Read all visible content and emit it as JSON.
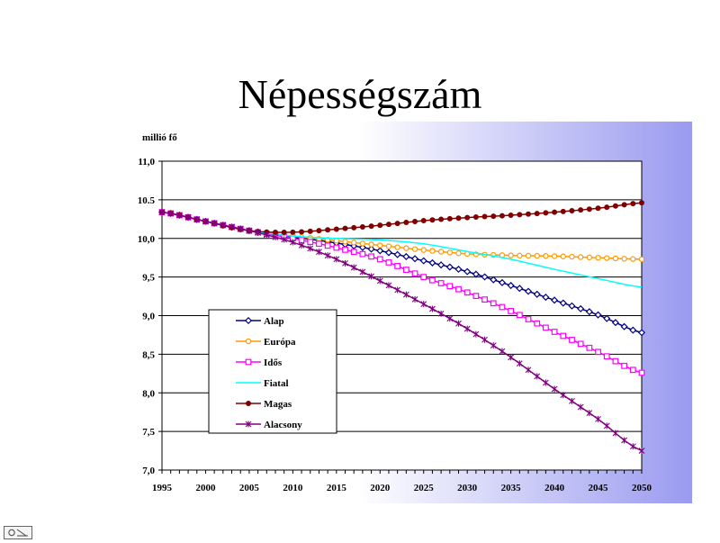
{
  "slide": {
    "title": "Népességszám"
  },
  "colors": {
    "panel_left": "#ffffff",
    "panel_right": "#9a9af0"
  },
  "nav": {
    "icon": "navigation-icon"
  },
  "chart_data": {
    "type": "line",
    "title": "",
    "ylabel": "millió fő",
    "xlabel": "",
    "xlim": [
      1995,
      2050
    ],
    "ylim": [
      7.0,
      11.0
    ],
    "grid": "horizontal",
    "legend_position": "left",
    "x_ticks": [
      "1995",
      "2000",
      "2005",
      "2010",
      "2015",
      "2020",
      "2025",
      "2030",
      "2035",
      "2040",
      "2045",
      "2050"
    ],
    "y_ticks": [
      "7,0",
      "7,5",
      "8,0",
      "8,5",
      "9,0",
      "9,5",
      "10,0",
      "10.5",
      "11,0"
    ],
    "y_tick_values": [
      7.0,
      7.5,
      8.0,
      8.5,
      9.0,
      9.5,
      10.0,
      10.5,
      11.0
    ],
    "series": [
      {
        "name": "Alap",
        "color": "#000080",
        "marker": "diamond",
        "points": [
          [
            1995,
            10.34
          ],
          [
            2000,
            10.22
          ],
          [
            2005,
            10.1
          ],
          [
            2010,
            10.02
          ],
          [
            2015,
            9.94
          ],
          [
            2020,
            9.84
          ],
          [
            2025,
            9.71
          ],
          [
            2030,
            9.57
          ],
          [
            2035,
            9.39
          ],
          [
            2040,
            9.2
          ],
          [
            2045,
            9.01
          ],
          [
            2050,
            8.78
          ]
        ]
      },
      {
        "name": "Európa",
        "color": "#ff9900",
        "marker": "circle-open",
        "points": [
          [
            1995,
            10.34
          ],
          [
            2000,
            10.22
          ],
          [
            2005,
            10.1
          ],
          [
            2010,
            10.03
          ],
          [
            2015,
            9.97
          ],
          [
            2020,
            9.91
          ],
          [
            2025,
            9.85
          ],
          [
            2030,
            9.8
          ],
          [
            2035,
            9.78
          ],
          [
            2040,
            9.77
          ],
          [
            2045,
            9.75
          ],
          [
            2050,
            9.73
          ]
        ]
      },
      {
        "name": "Idős",
        "color": "#ff00ff",
        "marker": "square-open",
        "points": [
          [
            1995,
            10.34
          ],
          [
            2000,
            10.22
          ],
          [
            2005,
            10.1
          ],
          [
            2010,
            10.0
          ],
          [
            2015,
            9.88
          ],
          [
            2020,
            9.73
          ],
          [
            2025,
            9.5
          ],
          [
            2030,
            9.3
          ],
          [
            2035,
            9.06
          ],
          [
            2040,
            8.79
          ],
          [
            2045,
            8.53
          ],
          [
            2050,
            8.26
          ]
        ]
      },
      {
        "name": "Fiatal",
        "color": "#00ffff",
        "marker": "none",
        "points": [
          [
            1995,
            10.34
          ],
          [
            2000,
            10.22
          ],
          [
            2005,
            10.1
          ],
          [
            2010,
            10.03
          ],
          [
            2015,
            10.0
          ],
          [
            2020,
            9.98
          ],
          [
            2025,
            9.93
          ],
          [
            2030,
            9.83
          ],
          [
            2035,
            9.73
          ],
          [
            2040,
            9.6
          ],
          [
            2045,
            9.48
          ],
          [
            2050,
            9.37
          ]
        ]
      },
      {
        "name": "Magas",
        "color": "#800000",
        "marker": "dot",
        "points": [
          [
            1995,
            10.34
          ],
          [
            2000,
            10.22
          ],
          [
            2005,
            10.1
          ],
          [
            2010,
            10.08
          ],
          [
            2015,
            10.12
          ],
          [
            2020,
            10.17
          ],
          [
            2025,
            10.23
          ],
          [
            2030,
            10.27
          ],
          [
            2035,
            10.3
          ],
          [
            2040,
            10.34
          ],
          [
            2045,
            10.39
          ],
          [
            2050,
            10.46
          ]
        ]
      },
      {
        "name": "Alacsony",
        "color": "#800080",
        "marker": "star",
        "points": [
          [
            1995,
            10.34
          ],
          [
            2000,
            10.22
          ],
          [
            2005,
            10.1
          ],
          [
            2010,
            9.95
          ],
          [
            2015,
            9.73
          ],
          [
            2020,
            9.45
          ],
          [
            2025,
            9.15
          ],
          [
            2030,
            8.83
          ],
          [
            2035,
            8.46
          ],
          [
            2040,
            8.05
          ],
          [
            2045,
            7.66
          ],
          [
            2050,
            7.25
          ]
        ]
      }
    ]
  }
}
